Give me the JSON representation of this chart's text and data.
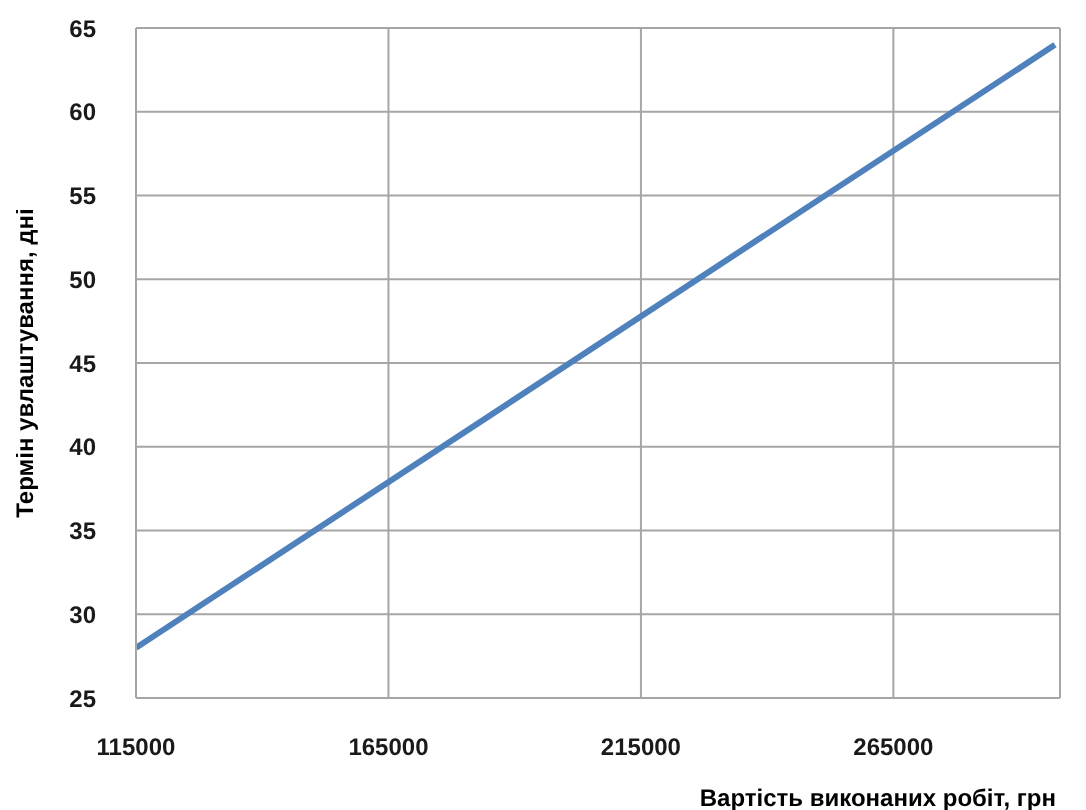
{
  "chart_data": {
    "type": "line",
    "xlabel": "Вартість виконаних робіт, грн",
    "ylabel": "Термін увлаштування, дні",
    "x": [
      115000,
      297000
    ],
    "series": [
      {
        "color": "#4f81bd",
        "values": [
          28,
          64
        ]
      }
    ],
    "xlim": [
      115000,
      298000
    ],
    "xticks": [
      115000,
      165000,
      215000,
      265000
    ],
    "ylim": [
      25,
      65
    ],
    "yticks": [
      25,
      30,
      35,
      40,
      45,
      50,
      55,
      60,
      65
    ],
    "grid": true,
    "marker": "none",
    "line_style": "solid"
  }
}
